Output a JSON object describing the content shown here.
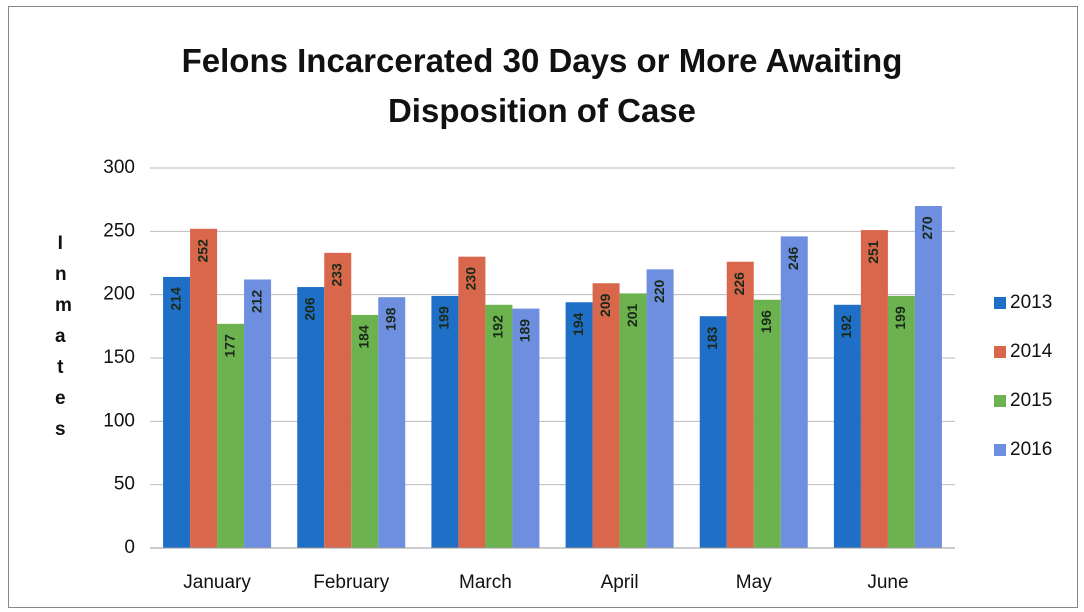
{
  "chart_data": {
    "type": "bar",
    "title": "Felons Incarcerated 30 Days or More Awaiting Disposition of Case",
    "y_label": "Inmates",
    "categories": [
      "January",
      "February",
      "March",
      "April",
      "May",
      "June"
    ],
    "series": [
      {
        "name": "2013",
        "color": "#1f6fc6",
        "values": [
          214,
          206,
          199,
          194,
          183,
          192
        ]
      },
      {
        "name": "2014",
        "color": "#d8674b",
        "values": [
          252,
          233,
          230,
          209,
          226,
          251
        ]
      },
      {
        "name": "2015",
        "color": "#6cb24e",
        "values": [
          177,
          184,
          192,
          201,
          196,
          199
        ]
      },
      {
        "name": "2016",
        "color": "#6e8fe0",
        "values": [
          212,
          198,
          189,
          220,
          246,
          270
        ]
      }
    ],
    "ylim": [
      0,
      300
    ],
    "yticks": [
      0,
      50,
      100,
      150,
      200,
      250,
      300
    ],
    "grid": true,
    "legend": "right"
  }
}
